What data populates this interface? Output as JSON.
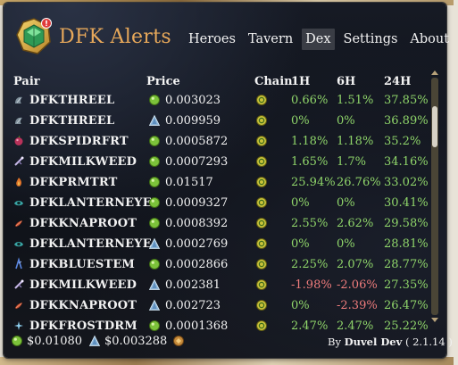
{
  "app": {
    "title": "DFK Alerts"
  },
  "nav": [
    {
      "label": "Heroes",
      "active": false
    },
    {
      "label": "Tavern",
      "active": false
    },
    {
      "label": "Dex",
      "active": true
    },
    {
      "label": "Settings",
      "active": false
    },
    {
      "label": "About",
      "active": false
    }
  ],
  "table": {
    "headers": {
      "pair": "Pair",
      "price": "Price",
      "chain": "Chain",
      "h1": "1H",
      "h6": "6H",
      "h24": "24H"
    },
    "rows": [
      {
        "pair": "DFKTHREEL",
        "pair_icon": "threel-icon",
        "price_icon": "jewel-icon",
        "price": "0.003023",
        "h1": "0.66%",
        "h6": "1.51%",
        "h24": "37.85%"
      },
      {
        "pair": "DFKTHREEL",
        "pair_icon": "threel-icon",
        "price_icon": "crystal-icon",
        "price": "0.009959",
        "h1": "0%",
        "h6": "0%",
        "h24": "36.89%"
      },
      {
        "pair": "DFKSPIDRFRT",
        "pair_icon": "spiderfruit-icon",
        "price_icon": "jewel-icon",
        "price": "0.0005872",
        "h1": "1.18%",
        "h6": "1.18%",
        "h24": "35.2%"
      },
      {
        "pair": "DFKMILKWEED",
        "pair_icon": "milkweed-icon",
        "price_icon": "jewel-icon",
        "price": "0.0007293",
        "h1": "1.65%",
        "h6": "1.7%",
        "h24": "34.16%"
      },
      {
        "pair": "DFKPRMTRT",
        "pair_icon": "pyromite-icon",
        "price_icon": "jewel-icon",
        "price": "0.01517",
        "h1": "25.94%",
        "h6": "26.76%",
        "h24": "33.02%"
      },
      {
        "pair": "DFKLANTERNEYE",
        "pair_icon": "lanterneye-icon",
        "price_icon": "jewel-icon",
        "price": "0.0009327",
        "h1": "0%",
        "h6": "0%",
        "h24": "30.41%"
      },
      {
        "pair": "DFKKNAPROOT",
        "pair_icon": "knaproot-icon",
        "price_icon": "jewel-icon",
        "price": "0.0008392",
        "h1": "2.55%",
        "h6": "2.62%",
        "h24": "29.58%"
      },
      {
        "pair": "DFKLANTERNEYE",
        "pair_icon": "lanterneye-icon",
        "price_icon": "crystal-icon",
        "price": "0.0002769",
        "h1": "0%",
        "h6": "0%",
        "h24": "28.81%"
      },
      {
        "pair": "DFKBLUESTEM",
        "pair_icon": "bluestem-icon",
        "price_icon": "jewel-icon",
        "price": "0.0002866",
        "h1": "2.25%",
        "h6": "2.07%",
        "h24": "28.77%"
      },
      {
        "pair": "DFKMILKWEED",
        "pair_icon": "milkweed-icon",
        "price_icon": "crystal-icon",
        "price": "0.002381",
        "h1": "-1.98%",
        "h6": "-2.06%",
        "h24": "27.35%"
      },
      {
        "pair": "DFKKNAPROOT",
        "pair_icon": "knaproot-icon",
        "price_icon": "crystal-icon",
        "price": "0.002723",
        "h1": "0%",
        "h6": "-2.39%",
        "h24": "26.47%"
      },
      {
        "pair": "DFKFROSTDRM",
        "pair_icon": "frostdrum-icon",
        "price_icon": "jewel-icon",
        "price": "0.0001368",
        "h1": "2.47%",
        "h6": "2.47%",
        "h24": "25.22%"
      }
    ]
  },
  "footer": {
    "jewel_price": "$0.01080",
    "crystal_price": "$0.003288",
    "credit_prefix": "By",
    "credit_author": "Duvel Dev",
    "version": "( 2.1.14 )"
  },
  "colors": {
    "accent": "#e7a85a",
    "positive": "#8fd56a",
    "negative": "#ef7c7c",
    "jewel": "#7cc23a",
    "crystal": "#8fb6d8"
  }
}
